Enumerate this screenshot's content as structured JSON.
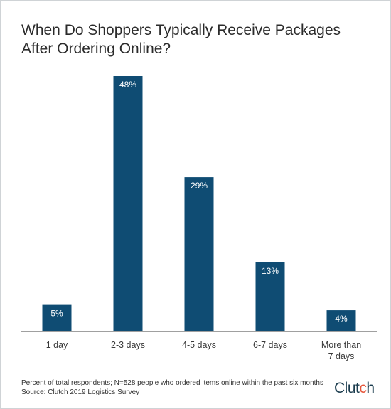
{
  "title": "When Do Shoppers Typically Receive Packages After Ordering Online?",
  "footnote_line1": "Percent of total respondents; N=528 people who ordered items online within the past six months",
  "footnote_line2": "Source: Clutch 2019 Logistics Survey",
  "logo": {
    "text_main": "Clut",
    "text_dot": "c",
    "text_end": "h"
  },
  "colors": {
    "bar": "#0f4c73",
    "label": "#ffffff",
    "axis": "#a0a0a0",
    "text": "#3a3a3a"
  },
  "chart_data": {
    "type": "bar",
    "categories": [
      "1 day",
      "2-3 days",
      "4-5 days",
      "6-7 days",
      "More than 7 days"
    ],
    "category_lines": [
      [
        "1 day"
      ],
      [
        "2-3 days"
      ],
      [
        "4-5 days"
      ],
      [
        "6-7 days"
      ],
      [
        "More than",
        "7 days"
      ]
    ],
    "values": [
      5,
      48,
      29,
      13,
      4
    ],
    "value_labels": [
      "5%",
      "48%",
      "29%",
      "13%",
      "4%"
    ],
    "title": "When Do Shoppers Typically Receive Packages After Ordering Online?",
    "xlabel": "",
    "ylabel": "",
    "ylim": [
      0,
      48
    ],
    "grid": false,
    "legend": "none"
  }
}
